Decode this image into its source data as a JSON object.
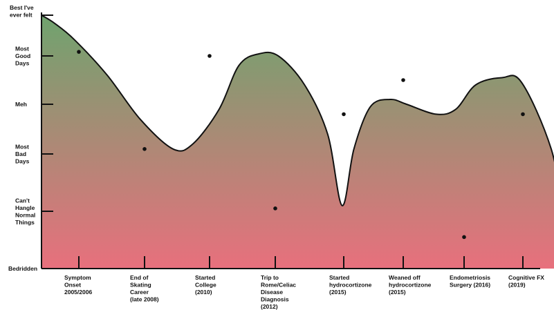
{
  "chart_data": {
    "type": "area",
    "title": "",
    "xlabel": "",
    "ylabel": "",
    "y_levels": [
      "Bedridden",
      "Can't Hangle Normal Things",
      "Most Bad Days",
      "Meh",
      "Most Good Days",
      "Best I've ever felt"
    ],
    "events": [
      {
        "label": "Symptom Onset 2005/2006",
        "lines": [
          "Symptom",
          "Onset",
          "2005/2006"
        ],
        "value": 4.1
      },
      {
        "label": "End of Skating Career (late 2008)",
        "lines": [
          "End of",
          "Skating",
          "Career",
          "(late 2008)"
        ],
        "value": 2.1
      },
      {
        "label": "Started College (2010)",
        "lines": [
          "Started",
          "College",
          "(2010)"
        ],
        "value": 4.0
      },
      {
        "label": "Trip to Rome/Celiac Disease Diagnosis (2012)",
        "lines": [
          "Trip to",
          "Rome/Celiac",
          "Disease",
          "Diagnosis",
          "(2012)"
        ],
        "value": 1.05
      },
      {
        "label": "Started hydrocortizone (2015)",
        "lines": [
          "Started",
          "hydrocortizone",
          "(2015)"
        ],
        "value": 2.8
      },
      {
        "label": "Weaned off hydrocortizone (2015)",
        "lines": [
          "Weaned off",
          "hydrocortizone",
          "(2015)"
        ],
        "value": 3.5
      },
      {
        "label": "Endometriosis Surgery (2016)",
        "lines": [
          "Endometriosis",
          "Surgery (2016)"
        ],
        "value": 0.55
      },
      {
        "label": "Cognitive FX (2019)",
        "lines": [
          "Cognitive FX",
          "(2019)"
        ],
        "value": 2.8
      }
    ],
    "curve_points": [
      [
        0.0,
        5.0
      ],
      [
        0.2,
        4.8
      ],
      [
        0.5,
        4.4
      ],
      [
        1.0,
        3.6
      ],
      [
        1.5,
        2.7
      ],
      [
        2.0,
        2.1
      ],
      [
        2.3,
        2.2
      ],
      [
        2.7,
        2.9
      ],
      [
        3.0,
        3.8
      ],
      [
        3.3,
        4.05
      ],
      [
        3.6,
        4.0
      ],
      [
        4.0,
        3.4
      ],
      [
        4.35,
        2.4
      ],
      [
        4.57,
        1.1
      ],
      [
        4.75,
        2.1
      ],
      [
        5.0,
        2.95
      ],
      [
        5.3,
        3.1
      ],
      [
        5.55,
        3.0
      ],
      [
        6.0,
        2.8
      ],
      [
        6.3,
        2.9
      ],
      [
        6.6,
        3.4
      ],
      [
        7.0,
        3.55
      ],
      [
        7.3,
        3.45
      ],
      [
        7.75,
        2.1
      ],
      [
        8.05,
        0.55
      ],
      [
        8.3,
        1.7
      ],
      [
        8.65,
        2.6
      ],
      [
        9.0,
        2.8
      ],
      [
        9.25,
        3.0
      ],
      [
        9.35,
        3.5
      ]
    ],
    "ylim": [
      0,
      5
    ],
    "gradient_colors": {
      "top": "#6fa36e",
      "bottom": "#e8707d"
    },
    "end_marker": "smiley-face-with-arrow",
    "grid": false,
    "legend": "none"
  }
}
